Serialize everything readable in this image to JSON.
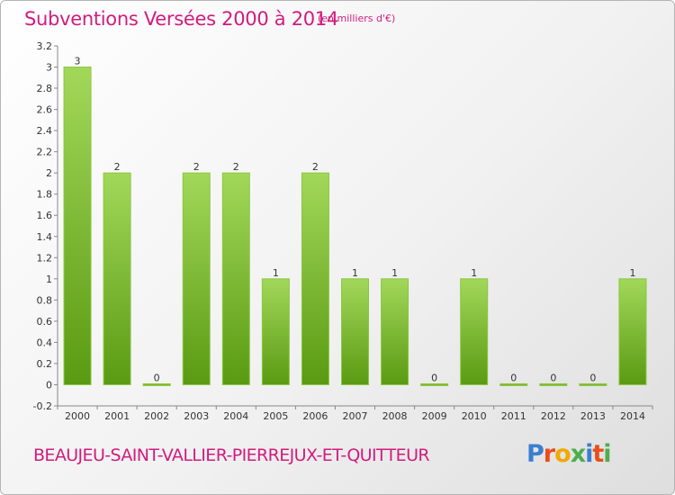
{
  "header": {
    "title": "Subventions Versées 2000 à 2014",
    "unit": "(en milliers d'€)"
  },
  "footer": {
    "commune": "BEAUJEU-SAINT-VALLIER-PIERREJUX-ET-QUITTEUR",
    "logo": "Proxiti"
  },
  "colors": {
    "title": "#d11c7e",
    "bar_top": "#a2d85a",
    "bar_bottom": "#5a9a12",
    "logo_letters": [
      "#3a7fd0",
      "#e94e1b",
      "#f2a900",
      "#4cae4c",
      "#3a7fd0",
      "#e94e1b",
      "#4cae4c"
    ]
  },
  "chart_data": {
    "type": "bar",
    "categories": [
      "2000",
      "2001",
      "2002",
      "2003",
      "2004",
      "2005",
      "2006",
      "2007",
      "2008",
      "2009",
      "2010",
      "2011",
      "2012",
      "2013",
      "2014"
    ],
    "values": [
      3,
      2,
      0,
      2,
      2,
      1,
      2,
      1,
      1,
      0,
      1,
      0,
      0,
      0,
      1
    ],
    "data_labels": [
      "3",
      "2",
      "0",
      "2",
      "2",
      "1",
      "2",
      "1",
      "1",
      "0",
      "1",
      "0",
      "0",
      "0",
      "1"
    ],
    "ylim": [
      -0.2,
      3.2
    ],
    "yticks": [
      "-0.2",
      "0",
      "0.2",
      "0.4",
      "0.6",
      "0.8",
      "1",
      "1.2",
      "1.4",
      "1.6",
      "1.8",
      "2",
      "2.2",
      "2.4",
      "2.6",
      "2.8",
      "3",
      "3.2"
    ],
    "ytick_values": [
      -0.2,
      0,
      0.2,
      0.4,
      0.6,
      0.8,
      1,
      1.2,
      1.4,
      1.6,
      1.8,
      2,
      2.2,
      2.4,
      2.6,
      2.8,
      3,
      3.2
    ],
    "grid": false,
    "legend": "none"
  }
}
